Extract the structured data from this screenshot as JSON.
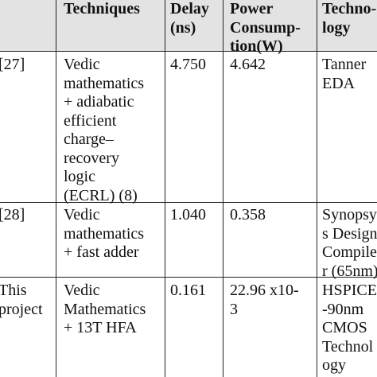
{
  "table": {
    "header": {
      "techniques": "Techniques",
      "delay": "Delay\n(ns)",
      "power": "Power\nConsump-\ntion(W)",
      "technology": "Techno-\nlogy"
    },
    "rows": [
      {
        "ref": "[27]",
        "techniques": "Vedic\nmathematics\n+ adiabatic\nefficient\ncharge–\nrecovery\nlogic\n(ECRL) (8)",
        "delay": "4.750",
        "power": "4.642",
        "technology": "Tanner\nEDA"
      },
      {
        "ref": "[28]",
        "techniques": "Vedic\nmathematics\n+ fast adder",
        "delay": "1.040",
        "power": "0.358",
        "technology": "Synopsy\ns Design\nCompile\nr (65nm)"
      },
      {
        "ref": "This\nproject",
        "techniques": "Vedic\nMathematics\n+ 13T HFA",
        "delay": "0.161",
        "power": "22.96 x10-\n3",
        "technology": "HSPICE\n-90nm\nCMOS\nTechnol\nogy"
      }
    ]
  }
}
